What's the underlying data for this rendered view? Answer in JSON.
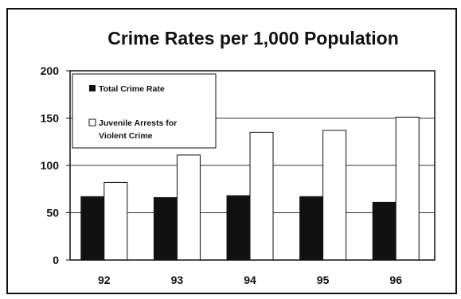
{
  "chart_data": {
    "type": "bar",
    "title": "Crime Rates per 1,000 Population",
    "xlabel": "",
    "ylabel": "",
    "categories": [
      "92",
      "93",
      "94",
      "95",
      "96"
    ],
    "series": [
      {
        "name": "Total Crime Rate",
        "values": [
          67,
          66,
          68,
          67,
          61
        ],
        "color": "#111111"
      },
      {
        "name": "Juvenile Arrests for Violent Crime",
        "values": [
          82,
          111,
          135,
          137,
          151
        ],
        "color": "#ffffff"
      }
    ],
    "ylim": [
      0,
      200
    ],
    "yticks": [
      "0",
      "50",
      "100",
      "150",
      "200"
    ],
    "grid": true,
    "legend_position": "top-left",
    "legend_lines": [
      [
        "Total Crime Rate"
      ],
      [
        "Juvenile Arrests for",
        "Violent Crime"
      ]
    ]
  }
}
